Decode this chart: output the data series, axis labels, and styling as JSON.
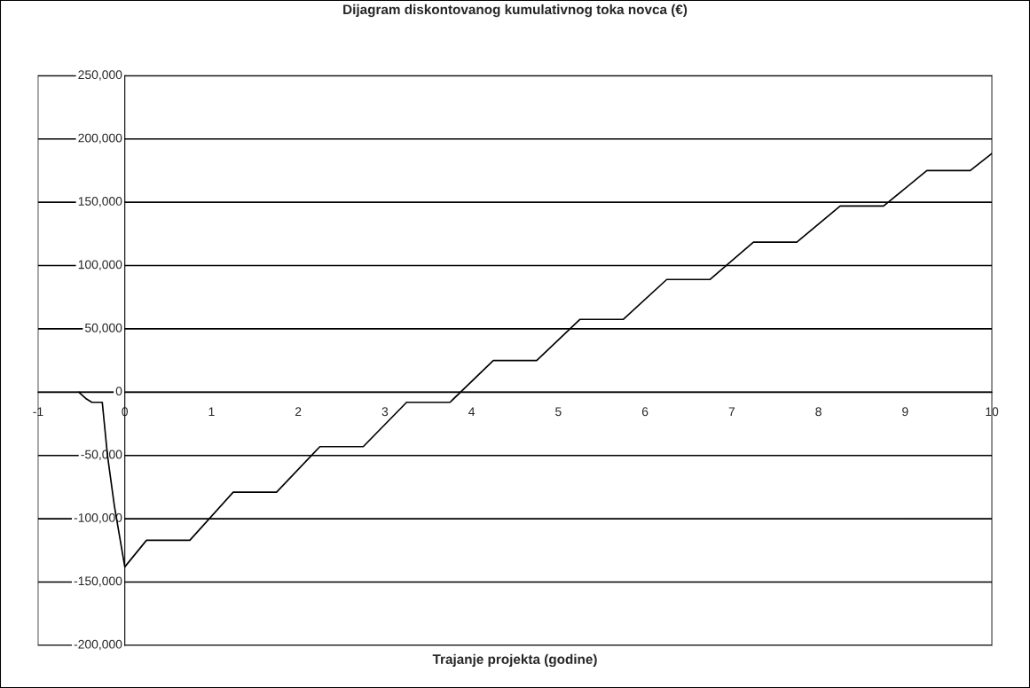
{
  "chart_data": {
    "type": "line",
    "title": "Dijagram diskontovanog kumulativnog toka novca (€)",
    "xlabel": "Trajanje projekta (godine)",
    "series": [
      {
        "color": "#000000",
        "x": [
          -0.53,
          -0.45,
          -0.38,
          -0.26,
          -0.2,
          -0.12,
          0,
          0.25,
          0.75,
          1.25,
          1.75,
          2.25,
          2.75,
          3.25,
          3.75,
          4.25,
          4.75,
          5.25,
          5.75,
          6.25,
          6.75,
          7.25,
          7.75,
          8.25,
          8.75,
          9.25,
          9.75,
          10
        ],
        "values": [
          0,
          -5000,
          -8000,
          -8000,
          -50000,
          -90000,
          -138000,
          -117000,
          -117000,
          -79000,
          -79000,
          -43000,
          -43000,
          -8000,
          -8000,
          25000,
          25000,
          57500,
          57500,
          89000,
          89000,
          118500,
          118500,
          147000,
          147000,
          175000,
          175000,
          188500
        ]
      }
    ],
    "xlim": [
      -1,
      10
    ],
    "xticks": [
      -1,
      0,
      1,
      2,
      3,
      4,
      5,
      6,
      7,
      8,
      9,
      10
    ],
    "ylim": [
      -200000,
      250000
    ],
    "yticks": [
      {
        "value": -200000,
        "label": "-200,000"
      },
      {
        "value": -150000,
        "label": "-150,000"
      },
      {
        "value": -100000,
        "label": "-100,000"
      },
      {
        "value": -50000,
        "label": "-50,000"
      },
      0,
      {
        "value": 50000,
        "label": "50,000"
      },
      {
        "value": 100000,
        "label": "100,000"
      },
      {
        "value": 150000,
        "label": "150,000"
      },
      {
        "value": 200000,
        "label": "200,000"
      },
      {
        "value": 250000,
        "label": "250,000"
      }
    ],
    "grid": "y",
    "marker": "none",
    "line_style": "solid"
  }
}
